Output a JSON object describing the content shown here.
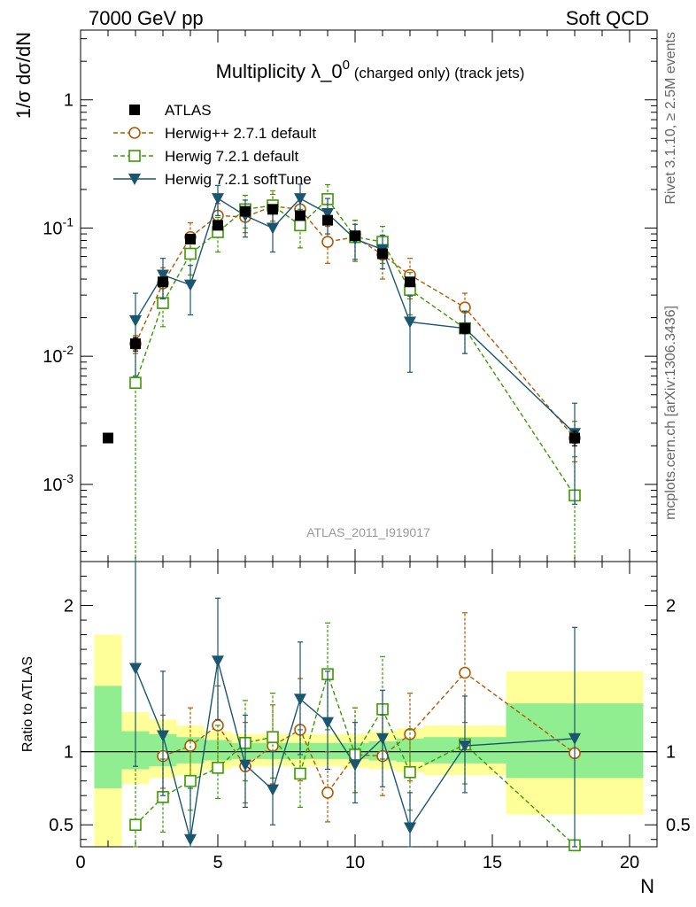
{
  "header": {
    "left": "7000 GeV pp",
    "right": "Soft QCD"
  },
  "side_text": {
    "top": "Rivet 3.1.10, ≥ 2.5M events",
    "bottom": "mcplots.cern.ch [arXiv:1306.3436]"
  },
  "colors": {
    "atlas": "#000000",
    "herwigpp": "#b35900",
    "herwig721": "#3a9a00",
    "softtune": "#1a5670",
    "band_inner": "#90ee90",
    "band_outer": "#ffff99"
  },
  "chart_data": [
    {
      "type": "scatter",
      "title": "Multiplicity λ_0",
      "title_sup": "0",
      "title_suffix": "(charged only) (track jets)",
      "ylabel": "1/σ dσ/dN",
      "yscale": "log",
      "ylim": [
        0.00025,
        3.5
      ],
      "xlim": [
        0,
        21
      ],
      "y_ticks": [
        {
          "v": 0.001,
          "base": "10",
          "exp": "-3"
        },
        {
          "v": 0.01,
          "base": "10",
          "exp": "-2"
        },
        {
          "v": 0.1,
          "base": "10",
          "exp": "-1"
        },
        {
          "v": 1,
          "base": "1",
          "exp": ""
        }
      ],
      "watermark": "ATLAS_2011_I919017",
      "legend_position": "top-left",
      "series": [
        {
          "name": "ATLAS",
          "marker": "filled-square",
          "line": "none",
          "color": "#000000",
          "x": [
            1,
            2,
            3,
            4,
            5,
            6,
            7,
            8,
            9,
            10,
            11,
            12,
            14,
            18
          ],
          "y": [
            0.0023,
            0.0125,
            0.038,
            0.082,
            0.105,
            0.135,
            0.14,
            0.125,
            0.115,
            0.087,
            0.063,
            0.038,
            0.0165,
            0.0023
          ],
          "err": [
            0,
            0.0015,
            0.003,
            0.006,
            0.008,
            0.01,
            0.01,
            0.009,
            0.008,
            0.006,
            0.005,
            0.003,
            0.0015,
            0.0003
          ]
        },
        {
          "name": "Herwig++ 2.7.1 default",
          "marker": "open-circle",
          "line": "dashed",
          "color": "#b35900",
          "x": [
            2,
            3,
            4,
            5,
            6,
            7,
            8,
            9,
            10,
            11,
            12,
            14,
            18
          ],
          "y": [
            0.0125,
            0.037,
            0.085,
            0.125,
            0.122,
            0.148,
            0.14,
            0.078,
            0.085,
            0.062,
            0.043,
            0.024,
            0.0023
          ],
          "err": [
            0.002,
            0.012,
            0.025,
            0.03,
            0.03,
            0.035,
            0.04,
            0.025,
            0.03,
            0.022,
            0.015,
            0.007,
            0.0008
          ]
        },
        {
          "name": "Herwig 7.2.1 default",
          "marker": "open-square",
          "line": "dashed",
          "color": "#3a9a00",
          "x": [
            2,
            3,
            4,
            5,
            6,
            7,
            8,
            9,
            10,
            11,
            12,
            14,
            18
          ],
          "y": [
            0.0062,
            0.026,
            0.063,
            0.093,
            0.14,
            0.15,
            0.105,
            0.168,
            0.085,
            0.078,
            0.033,
            0.0165,
            0.00082
          ],
          "err": [
            0.0062,
            0.009,
            0.02,
            0.028,
            0.04,
            0.045,
            0.035,
            0.05,
            0.03,
            0.025,
            0.012,
            0.006,
            0.00082
          ]
        },
        {
          "name": "Herwig 7.2.1 softTune",
          "marker": "filled-triangle-down",
          "line": "solid",
          "color": "#1a5670",
          "x": [
            2,
            3,
            4,
            5,
            6,
            7,
            8,
            9,
            10,
            11,
            12,
            14,
            18
          ],
          "y": [
            0.019,
            0.043,
            0.036,
            0.17,
            0.125,
            0.1,
            0.17,
            0.13,
            0.082,
            0.068,
            0.0185,
            0.0165,
            0.0025
          ],
          "err": [
            0.012,
            0.015,
            0.015,
            0.045,
            0.04,
            0.035,
            0.05,
            0.04,
            0.025,
            0.02,
            0.011,
            0.006,
            0.0018
          ]
        }
      ]
    },
    {
      "type": "scatter",
      "ylabel": "Ratio to ATLAS",
      "xlabel": "N",
      "ylim": [
        0.35,
        2.3
      ],
      "xlim": [
        0,
        21
      ],
      "reference_line": 1,
      "y_ticks": [
        {
          "v": 0.5,
          "label": "0.5"
        },
        {
          "v": 1,
          "label": "1"
        },
        {
          "v": 2,
          "label": "2"
        }
      ],
      "x_ticks": [
        0,
        5,
        10,
        15,
        20
      ],
      "bands": [
        {
          "x0": 0.5,
          "x1": 1.5,
          "inner": [
            0.75,
            1.45
          ],
          "outer": [
            0.35,
            1.8
          ]
        },
        {
          "x0": 1.5,
          "x1": 2.5,
          "inner": [
            0.88,
            1.14
          ],
          "outer": [
            0.78,
            1.27
          ]
        },
        {
          "x0": 2.5,
          "x1": 3.5,
          "inner": [
            0.9,
            1.12
          ],
          "outer": [
            0.82,
            1.22
          ]
        },
        {
          "x0": 3.5,
          "x1": 4.5,
          "inner": [
            0.92,
            1.1
          ],
          "outer": [
            0.84,
            1.18
          ]
        },
        {
          "x0": 4.5,
          "x1": 5.5,
          "inner": [
            0.94,
            1.08
          ],
          "outer": [
            0.88,
            1.14
          ]
        },
        {
          "x0": 5.5,
          "x1": 6.5,
          "inner": [
            0.95,
            1.06
          ],
          "outer": [
            0.9,
            1.12
          ]
        },
        {
          "x0": 6.5,
          "x1": 7.5,
          "inner": [
            0.95,
            1.06
          ],
          "outer": [
            0.9,
            1.12
          ]
        },
        {
          "x0": 7.5,
          "x1": 8.5,
          "inner": [
            0.95,
            1.06
          ],
          "outer": [
            0.9,
            1.12
          ]
        },
        {
          "x0": 8.5,
          "x1": 9.5,
          "inner": [
            0.95,
            1.06
          ],
          "outer": [
            0.9,
            1.12
          ]
        },
        {
          "x0": 9.5,
          "x1": 10.5,
          "inner": [
            0.95,
            1.06
          ],
          "outer": [
            0.89,
            1.12
          ]
        },
        {
          "x0": 10.5,
          "x1": 11.5,
          "inner": [
            0.94,
            1.07
          ],
          "outer": [
            0.88,
            1.14
          ]
        },
        {
          "x0": 11.5,
          "x1": 12.5,
          "inner": [
            0.93,
            1.09
          ],
          "outer": [
            0.86,
            1.16
          ]
        },
        {
          "x0": 12.5,
          "x1": 15.5,
          "inner": [
            0.92,
            1.1
          ],
          "outer": [
            0.84,
            1.18
          ]
        },
        {
          "x0": 15.5,
          "x1": 20.5,
          "inner": [
            0.82,
            1.33
          ],
          "outer": [
            0.57,
            1.55
          ]
        }
      ],
      "series": [
        {
          "name": "Herwig++ 2.7.1 default",
          "color": "#b35900",
          "marker": "open-circle",
          "line": "dashed",
          "x": [
            3,
            4,
            5,
            6,
            7,
            8,
            9,
            10,
            11,
            12,
            14,
            18
          ],
          "y": [
            0.97,
            1.04,
            1.18,
            0.9,
            1.04,
            1.15,
            0.72,
            0.98,
            0.97,
            1.12,
            1.54,
            0.99
          ],
          "lo": [
            0.75,
            0.8,
            0.9,
            0.65,
            0.78,
            0.8,
            0.52,
            0.72,
            0.7,
            0.8,
            1.2,
            0.99
          ],
          "hi": [
            1.25,
            1.3,
            1.45,
            1.2,
            1.32,
            1.5,
            1.0,
            1.3,
            1.25,
            1.4,
            1.95,
            0.99
          ]
        },
        {
          "name": "Herwig 7.2.1 default",
          "color": "#3a9a00",
          "marker": "open-square",
          "line": "dashed",
          "x": [
            2,
            3,
            4,
            5,
            6,
            7,
            8,
            9,
            10,
            11,
            12,
            14,
            18
          ],
          "y": [
            0.5,
            0.69,
            0.8,
            0.89,
            1.06,
            1.1,
            0.85,
            1.53,
            0.98,
            1.29,
            0.86,
            1.05,
            0.36
          ],
          "lo": [
            0.35,
            0.45,
            0.6,
            0.68,
            0.8,
            0.82,
            0.62,
            1.15,
            0.72,
            0.95,
            0.6,
            0.78,
            0.36
          ],
          "hi": [
            1.0,
            0.95,
            1.08,
            1.18,
            1.35,
            1.4,
            1.15,
            1.88,
            1.3,
            1.65,
            1.15,
            1.05,
            0.36
          ]
        },
        {
          "name": "Herwig 7.2.1 softTune",
          "color": "#1a5670",
          "marker": "filled-triangle-down",
          "line": "solid",
          "x": [
            2,
            3,
            4,
            5,
            6,
            7,
            8,
            9,
            10,
            11,
            12,
            14,
            18
          ],
          "y": [
            1.57,
            1.11,
            0.4,
            1.62,
            0.91,
            0.74,
            1.36,
            1.2,
            0.91,
            1.09,
            0.48,
            1.04,
            1.09
          ],
          "lo": [
            0.9,
            0.7,
            0.35,
            1.22,
            0.62,
            0.5,
            0.98,
            0.88,
            0.65,
            0.76,
            0.35,
            0.72,
            0.35
          ],
          "hi": [
            2.3,
            1.55,
            0.75,
            2.05,
            1.25,
            1.0,
            1.75,
            1.55,
            1.2,
            1.42,
            0.72,
            1.38,
            1.85
          ]
        }
      ]
    }
  ]
}
